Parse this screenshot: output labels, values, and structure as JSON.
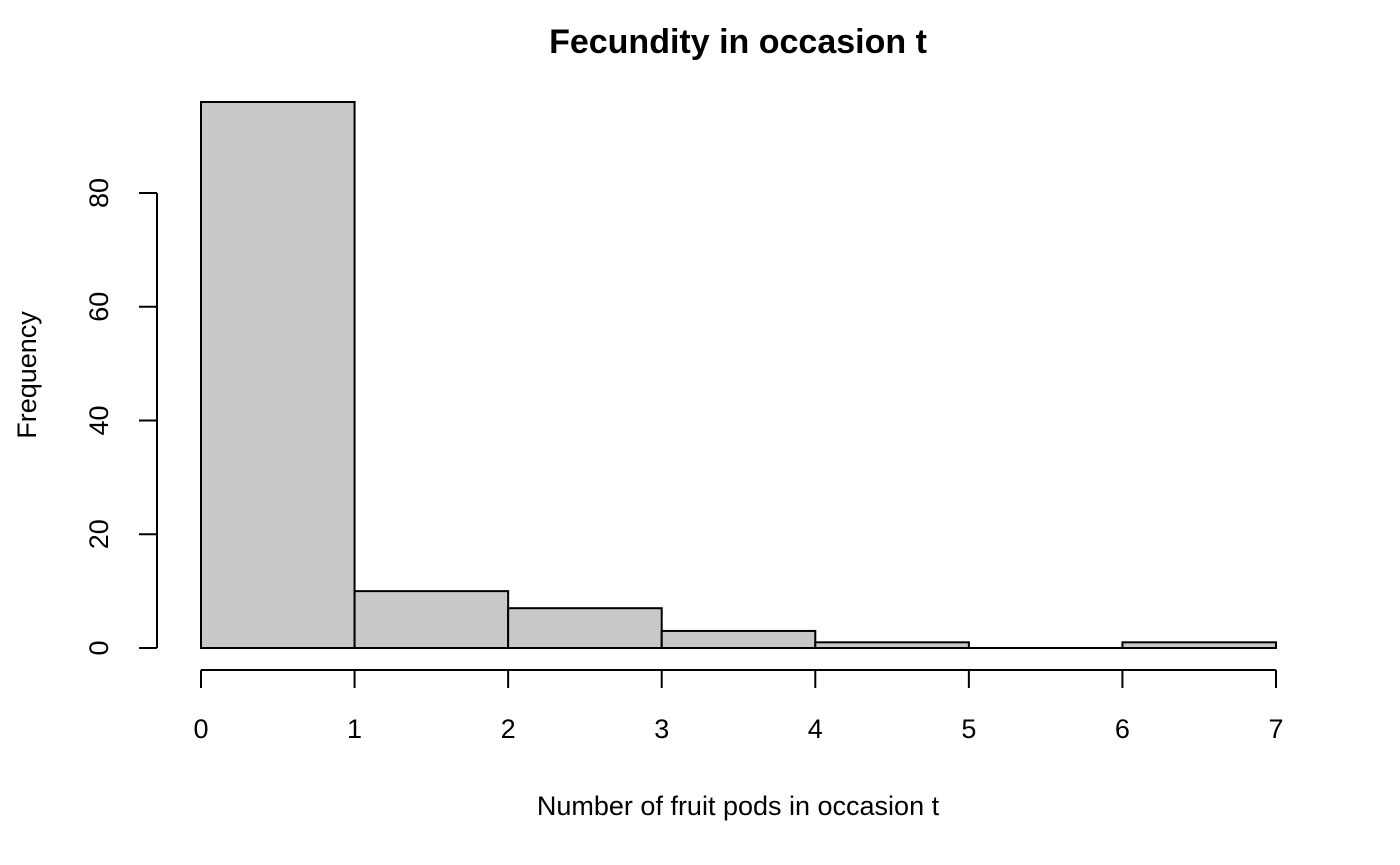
{
  "chart_data": {
    "type": "bar",
    "title": "Fecundity in occasion t",
    "xlabel": "Number of fruit pods in occasion t",
    "ylabel": "Frequency",
    "bins": [
      {
        "from": 0,
        "to": 1,
        "value": 96
      },
      {
        "from": 1,
        "to": 2,
        "value": 10
      },
      {
        "from": 2,
        "to": 3,
        "value": 7
      },
      {
        "from": 3,
        "to": 4,
        "value": 3
      },
      {
        "from": 4,
        "to": 5,
        "value": 1
      },
      {
        "from": 5,
        "to": 6,
        "value": 0
      },
      {
        "from": 6,
        "to": 7,
        "value": 1
      }
    ],
    "xlim": [
      0,
      7
    ],
    "ylim": [
      0,
      96
    ],
    "xticks": [
      "0",
      "1",
      "2",
      "3",
      "4",
      "5",
      "6",
      "7"
    ],
    "yticks": [
      "0",
      "20",
      "40",
      "60",
      "80"
    ],
    "bar_color": "#c8c8c8",
    "grid": false,
    "legend": "none"
  }
}
